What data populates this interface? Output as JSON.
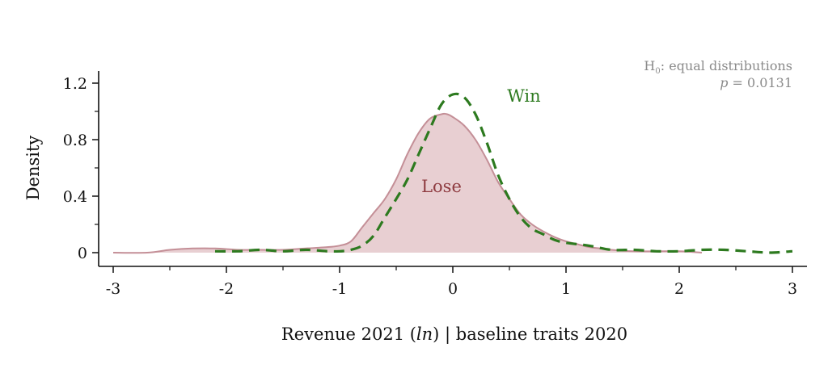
{
  "chart_data": {
    "type": "area",
    "xlabel": "Revenue 2021 (ln) | baseline traits 2020",
    "ylabel": "Density",
    "xlim": [
      -3,
      3
    ],
    "ylim": [
      0,
      1.2
    ],
    "xticks": [
      -3,
      -2,
      -1,
      0,
      1,
      2,
      3
    ],
    "yticks": [
      0,
      0.4,
      0.8,
      1.2
    ],
    "grid": false,
    "annotation": {
      "line1_H": "H",
      "line1_sub": "0",
      "line1_rest": ": equal distributions",
      "line2_p": "p",
      "line2_rest": " = 0.0131"
    },
    "series": [
      {
        "name": "Lose",
        "style": "filled-area",
        "line_color": "#c48f97",
        "fill_color": "#e8cfd2",
        "label_color": "#8e3b40",
        "label_x": -0.1,
        "label_y": 0.43,
        "x": [
          -3.0,
          -2.7,
          -2.5,
          -2.3,
          -2.1,
          -1.9,
          -1.7,
          -1.5,
          -1.3,
          -1.1,
          -1.0,
          -0.9,
          -0.8,
          -0.7,
          -0.6,
          -0.5,
          -0.4,
          -0.3,
          -0.2,
          -0.1,
          -0.05,
          0.0,
          0.1,
          0.2,
          0.3,
          0.4,
          0.5,
          0.6,
          0.7,
          0.8,
          0.9,
          1.0,
          1.1,
          1.2,
          1.3,
          1.4,
          1.6,
          1.8,
          2.0,
          2.2
        ],
        "y": [
          0.0,
          0.0,
          0.02,
          0.03,
          0.03,
          0.02,
          0.02,
          0.02,
          0.03,
          0.04,
          0.05,
          0.08,
          0.18,
          0.28,
          0.38,
          0.52,
          0.7,
          0.85,
          0.95,
          0.98,
          0.98,
          0.96,
          0.9,
          0.8,
          0.66,
          0.5,
          0.38,
          0.27,
          0.2,
          0.15,
          0.11,
          0.08,
          0.06,
          0.04,
          0.03,
          0.02,
          0.01,
          0.01,
          0.01,
          0.0
        ]
      },
      {
        "name": "Win",
        "style": "dashed-line",
        "line_color": "#2d7a1f",
        "label_color": "#2d7a1f",
        "label_x": 0.48,
        "label_y": 1.07,
        "x": [
          -2.1,
          -1.9,
          -1.7,
          -1.5,
          -1.3,
          -1.1,
          -1.0,
          -0.9,
          -0.8,
          -0.7,
          -0.6,
          -0.5,
          -0.4,
          -0.3,
          -0.2,
          -0.1,
          0.0,
          0.1,
          0.2,
          0.3,
          0.4,
          0.5,
          0.6,
          0.7,
          0.8,
          0.9,
          1.0,
          1.2,
          1.4,
          1.6,
          1.8,
          2.0,
          2.2,
          2.4,
          2.6,
          2.8,
          3.0
        ],
        "y": [
          0.01,
          0.01,
          0.02,
          0.01,
          0.02,
          0.01,
          0.01,
          0.02,
          0.05,
          0.12,
          0.25,
          0.38,
          0.52,
          0.7,
          0.88,
          1.05,
          1.12,
          1.1,
          0.98,
          0.78,
          0.55,
          0.38,
          0.25,
          0.17,
          0.13,
          0.09,
          0.07,
          0.05,
          0.02,
          0.02,
          0.01,
          0.01,
          0.02,
          0.02,
          0.01,
          0.0,
          0.01
        ]
      }
    ]
  }
}
